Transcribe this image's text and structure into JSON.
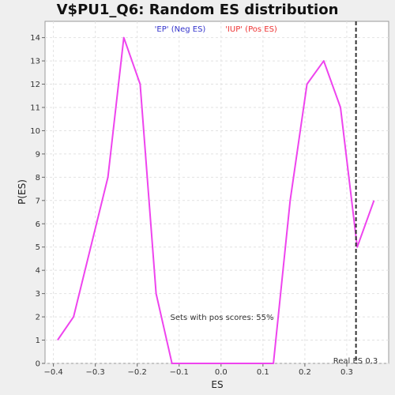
{
  "chart_data": {
    "type": "line",
    "title": "V$PU1_Q6: Random ES distribution",
    "xlabel": "ES",
    "ylabel": "P(ES)",
    "xlim": [
      -0.42,
      0.4
    ],
    "ylim": [
      0,
      14.7
    ],
    "x_ticks": [
      -0.4,
      -0.3,
      -0.2,
      -0.1,
      0.0,
      0.1,
      0.2,
      0.3
    ],
    "x_tick_labels": [
      "−0.4",
      "−0.3",
      "−0.2",
      "−0.1",
      "0.0",
      "0.1",
      "0.2",
      "0.3"
    ],
    "y_ticks": [
      0,
      1,
      2,
      3,
      4,
      5,
      6,
      7,
      8,
      9,
      10,
      11,
      12,
      13,
      14
    ],
    "y_tick_labels": [
      "0",
      "1",
      "2",
      "3",
      "4",
      "5",
      "6",
      "7",
      "8",
      "9",
      "10",
      "11",
      "12",
      "13",
      "14"
    ],
    "grid": true,
    "series": [
      {
        "color": "#ee44ee",
        "x": [
          -0.39,
          -0.352,
          -0.27,
          -0.232,
          -0.193,
          -0.155,
          -0.117,
          -0.078,
          0.0,
          0.1,
          0.125,
          0.165,
          0.205,
          0.245,
          0.285,
          0.325,
          0.365
        ],
        "y": [
          1,
          2,
          8,
          14,
          12,
          3,
          0,
          0,
          0,
          0,
          0,
          7,
          12,
          13,
          11,
          5,
          7
        ]
      }
    ],
    "vline": {
      "x": 0.322,
      "label": "Real ES 0.3",
      "color": "#333333"
    },
    "legend": [
      {
        "label": "'EP' (Neg ES)",
        "color": "#3333cc"
      },
      {
        "label": "'IUP' (Pos ES)",
        "color": "#ee3333"
      }
    ],
    "annotation": "Sets with pos scores: 55%"
  }
}
